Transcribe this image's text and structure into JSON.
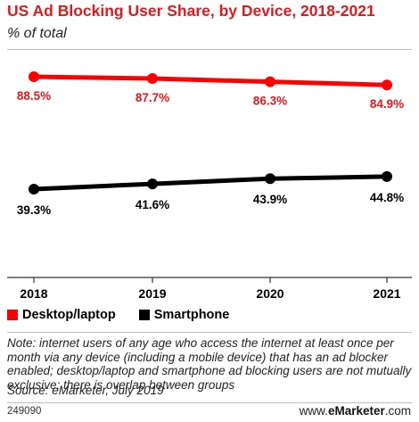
{
  "header": {
    "title": "US Ad Blocking User Share, by Device, 2018-2021",
    "subtitle": "% of total"
  },
  "chart_data": {
    "type": "line",
    "title": "US Ad Blocking User Share, by Device, 2018-2021",
    "subtitle": "% of total",
    "xlabel": "",
    "ylabel": "",
    "categories": [
      "2018",
      "2019",
      "2020",
      "2021"
    ],
    "series": [
      {
        "name": "Desktop/laptop",
        "color": "#ff0000",
        "values": [
          88.5,
          87.7,
          86.3,
          84.9
        ],
        "labels": [
          "88.5%",
          "87.7%",
          "86.3%",
          "84.9%"
        ]
      },
      {
        "name": "Smartphone",
        "color": "#000000",
        "values": [
          39.3,
          41.6,
          43.9,
          44.8
        ],
        "labels": [
          "39.3%",
          "41.6%",
          "43.9%",
          "44.8%"
        ]
      }
    ],
    "grid": false,
    "legend_position": "bottom-left"
  },
  "footer": {
    "note": "Note: internet users of any age who access the internet at least once per month via any device (including a mobile device) that has an ad blocker enabled; desktop/laptop and smartphone ad blocking users are not mutually exclusive; there is overlap between groups",
    "source": "Source: eMarketer, July 2019",
    "chart_id": "249090",
    "brand_prefix": "www.",
    "brand_name": "eMarketer",
    "brand_suffix": ".com"
  }
}
